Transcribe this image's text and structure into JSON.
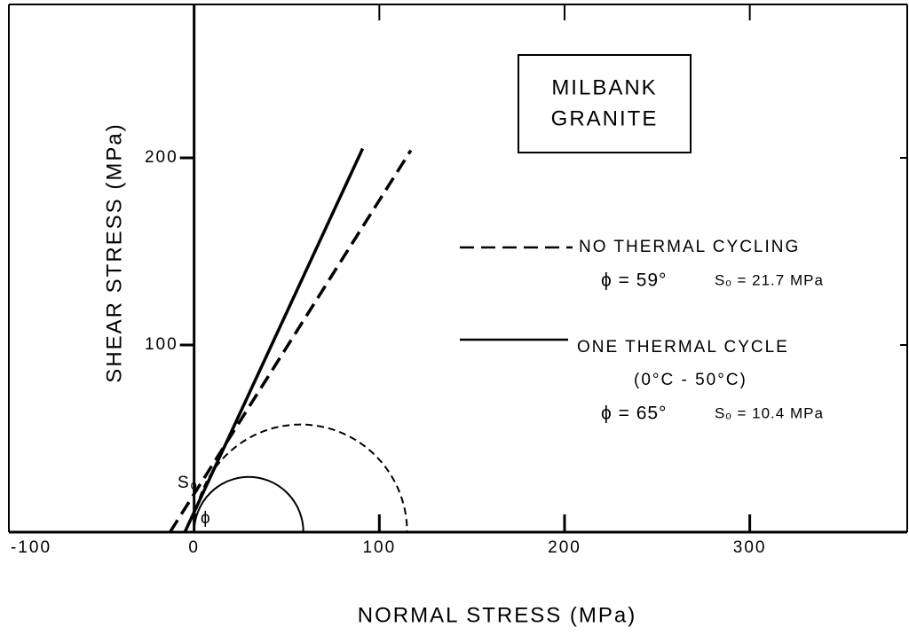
{
  "chart_data": {
    "type": "line",
    "title": [
      "MILBANK",
      "GRANITE"
    ],
    "xlabel": "NORMAL STRESS (MPa)",
    "ylabel": "SHEAR STRESS (MPa)",
    "xlim": [
      -100,
      385
    ],
    "ylim": [
      0,
      282
    ],
    "xticks": [
      -100,
      0,
      100,
      200,
      300
    ],
    "yticks": [
      100,
      200
    ],
    "series": [
      {
        "name": "NO THERMAL CYCLING",
        "color": "#000000",
        "dash": true,
        "x": [
          -13,
          117
        ],
        "values": [
          0,
          204
        ],
        "params": [
          "ϕ = 59°",
          "Sₒ = 21.7 MPa"
        ]
      },
      {
        "name": "ONE THERMAL CYCLE",
        "color": "#000000",
        "dash": false,
        "x": [
          -5,
          91
        ],
        "values": [
          0,
          205
        ],
        "note": "(0°C - 50°C)",
        "params": [
          "ϕ = 65°",
          "Sₒ = 10.4 MPa"
        ]
      }
    ],
    "circles": [
      {
        "center": 57.5,
        "radius": 57.5,
        "dash": true
      },
      {
        "center": 29.5,
        "radius": 29.5,
        "dash": false
      }
    ],
    "annotations": [
      "Sₒ",
      "ϕ"
    ]
  }
}
